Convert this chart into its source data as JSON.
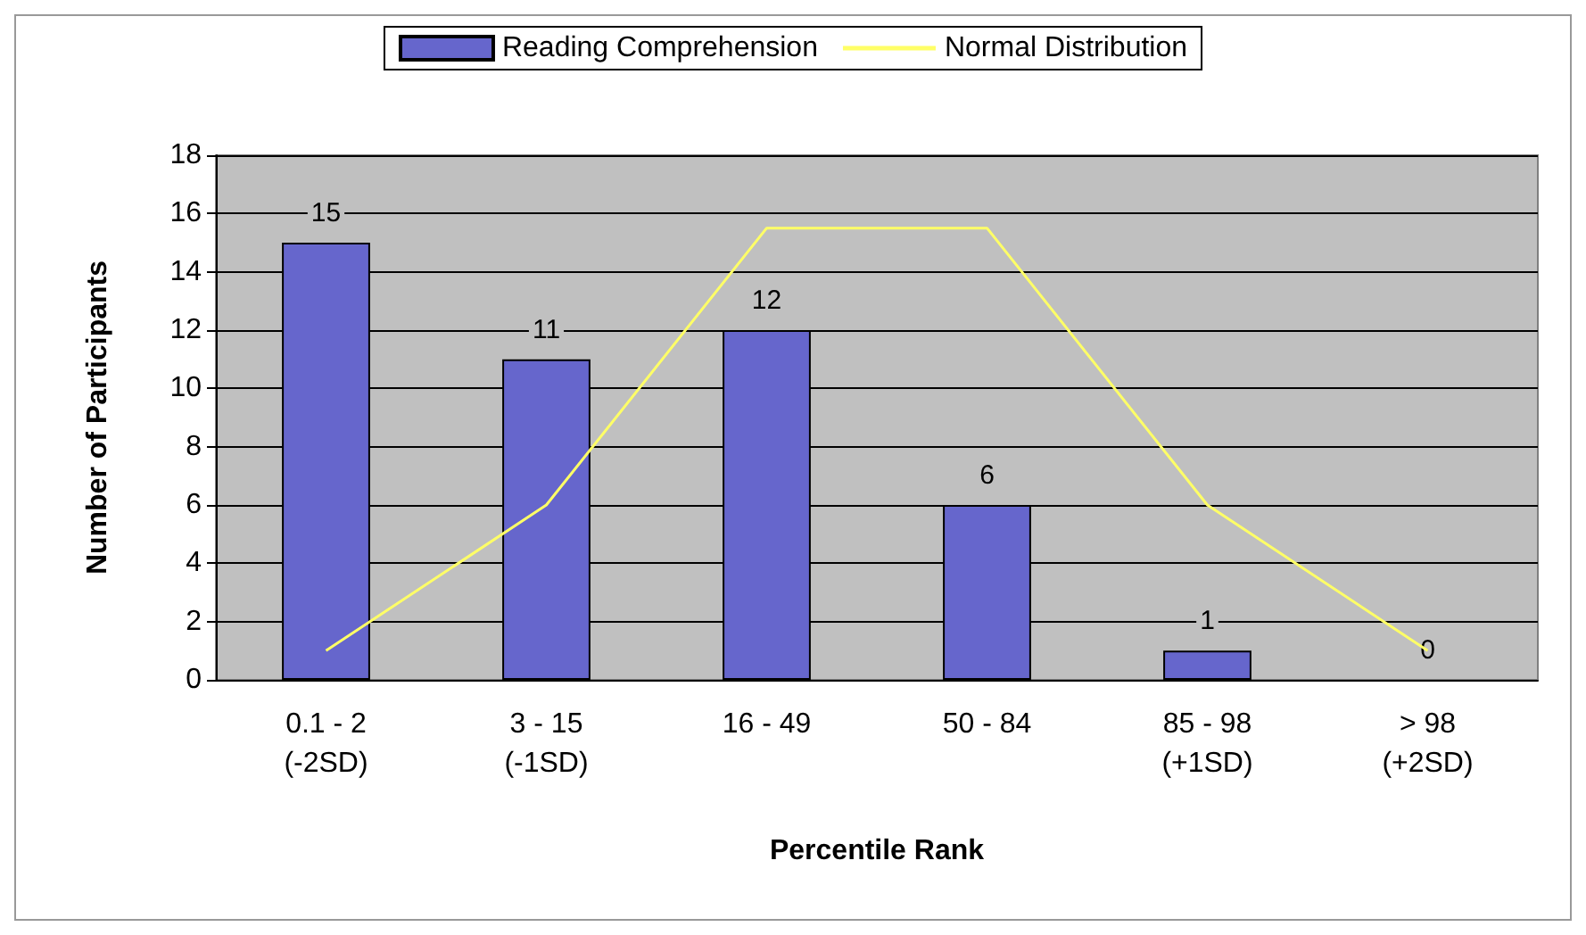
{
  "chart_data": {
    "type": "bar",
    "xlabel": "Percentile Rank",
    "ylabel": "Number of Participants",
    "categories": [
      "0.1 - 2\n(-2SD)",
      "3 - 15\n(-1SD)",
      "16 - 49",
      "50 - 84",
      "85 - 98\n(+1SD)",
      "> 98\n(+2SD)"
    ],
    "series": [
      {
        "name": "Reading Comprehension",
        "color": "#6666cc",
        "values": [
          15,
          11,
          12,
          6,
          1,
          0
        ],
        "value_labels": [
          "15",
          "11",
          "12",
          "6",
          "1",
          "0"
        ]
      },
      {
        "name": "Normal Distribution",
        "type": "line",
        "color": "#ffff66",
        "values": [
          1,
          6,
          15.5,
          15.5,
          6,
          1
        ]
      }
    ],
    "ylim": [
      0,
      18
    ],
    "yticks": [
      0,
      2,
      4,
      6,
      8,
      10,
      12,
      14,
      16,
      18
    ],
    "grid": "y",
    "legend": "top",
    "marker": "none",
    "line_style": "solid"
  }
}
